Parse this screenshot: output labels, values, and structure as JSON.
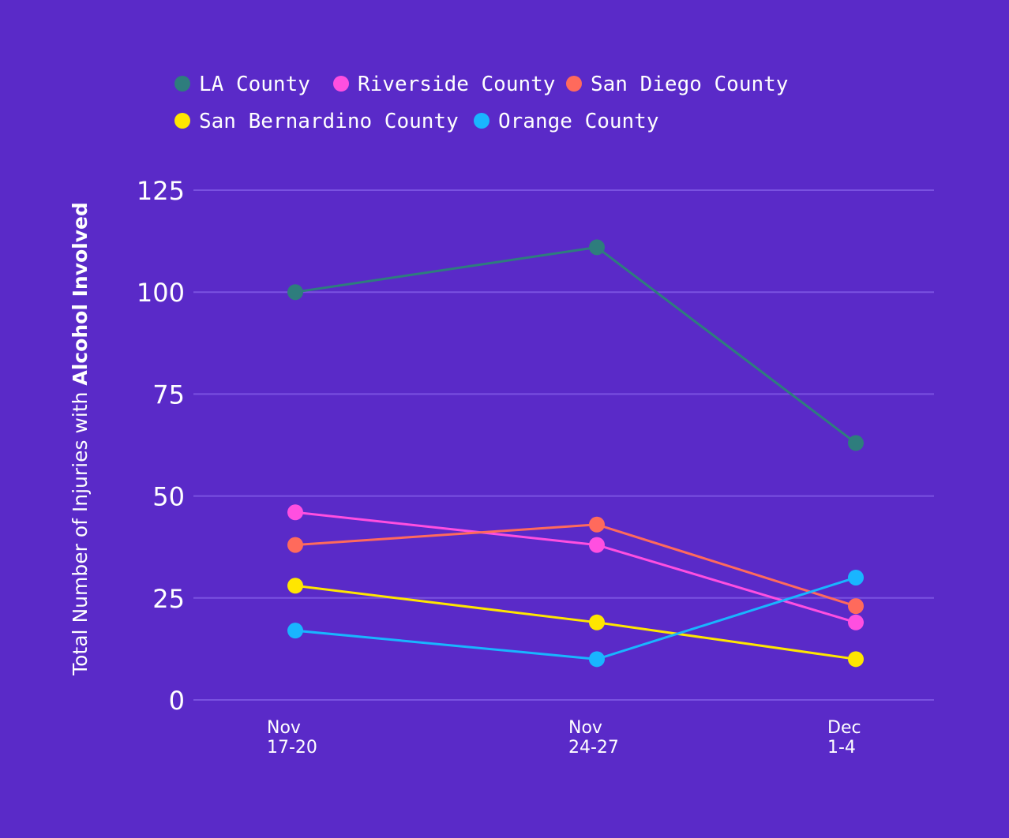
{
  "colors": {
    "background": "#5a2ac8",
    "gridline": "#7a52e0",
    "text": "#ffffff"
  },
  "chart_data": {
    "type": "line",
    "title": "",
    "xlabel": "",
    "ylabel_prefix": "Total Number of Injuries with ",
    "ylabel_bold": "Alcohol Involved",
    "ylim": [
      0,
      125
    ],
    "yticks": [
      0,
      25,
      50,
      75,
      100,
      125
    ],
    "grid": true,
    "legend_position": "top",
    "categories": [
      [
        "Nov",
        "17-20"
      ],
      [
        "Nov",
        "24-27"
      ],
      [
        "Dec",
        "1-4"
      ]
    ],
    "series": [
      {
        "name": "LA County",
        "color": "#2e7d7d",
        "values": [
          100,
          111,
          63
        ]
      },
      {
        "name": "Riverside County",
        "color": "#ff4fe0",
        "values": [
          46,
          38,
          19
        ]
      },
      {
        "name": "San Diego County",
        "color": "#ff6a5c",
        "values": [
          38,
          43,
          23
        ]
      },
      {
        "name": "San Bernardino County",
        "color": "#ffe600",
        "values": [
          28,
          19,
          10
        ]
      },
      {
        "name": "Orange County",
        "color": "#19b5ff",
        "values": [
          17,
          10,
          30
        ]
      }
    ]
  }
}
